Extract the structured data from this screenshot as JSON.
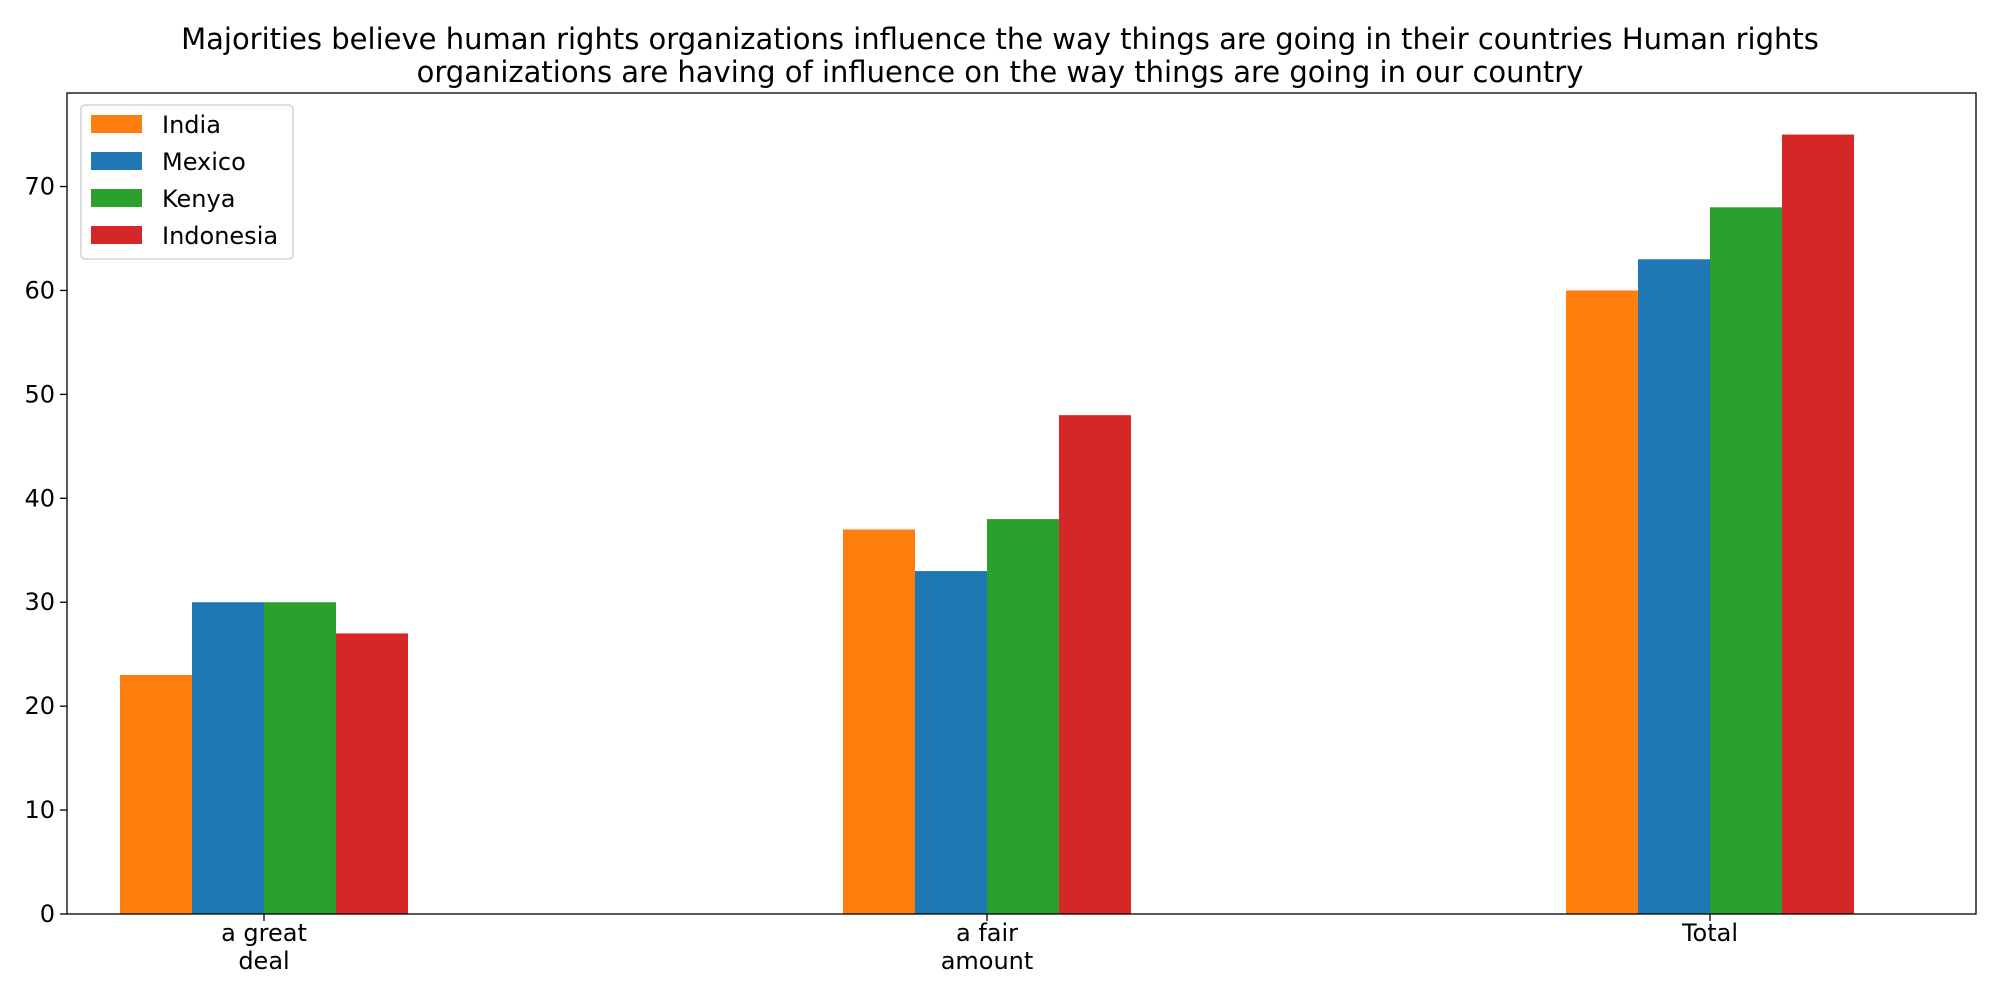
{
  "chart_data": {
    "type": "bar",
    "title_lines": [
      "Majorities believe human rights organizations influence the way things are going in their countries Human rights",
      "organizations are having of influence on the way things are going in our country"
    ],
    "categories": [
      [
        "a great",
        "deal"
      ],
      [
        "a fair",
        "amount"
      ],
      [
        "Total"
      ]
    ],
    "series": [
      {
        "name": "India",
        "color": "#ff7f0e",
        "values": [
          23,
          37,
          60
        ]
      },
      {
        "name": "Mexico",
        "color": "#1f77b4",
        "values": [
          30,
          33,
          63
        ]
      },
      {
        "name": "Kenya",
        "color": "#2ca02c",
        "values": [
          30,
          38,
          68
        ]
      },
      {
        "name": "Indonesia",
        "color": "#d62728",
        "values": [
          27,
          48,
          75
        ]
      }
    ],
    "xlabel": "",
    "ylabel": "",
    "ylim": [
      0,
      79
    ],
    "yticks": [
      0,
      10,
      20,
      30,
      40,
      50,
      60,
      70
    ],
    "grid": false,
    "legend_position": "top-left"
  }
}
